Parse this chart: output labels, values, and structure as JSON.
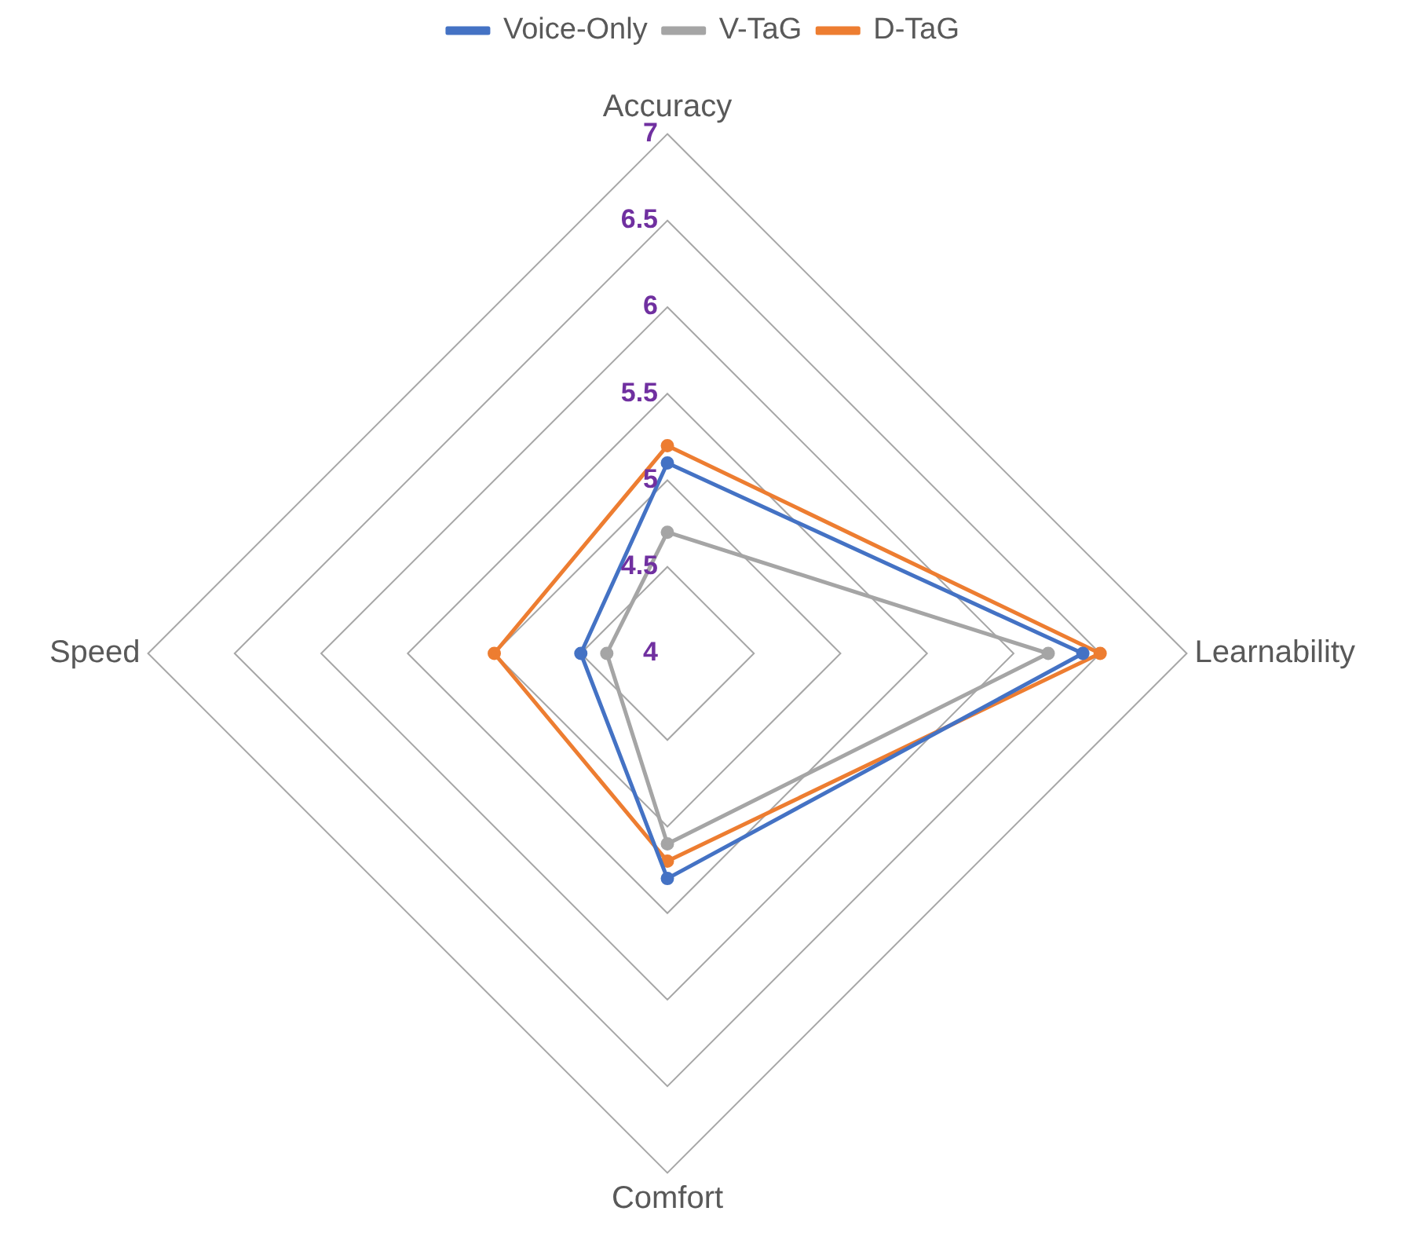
{
  "chart_data": {
    "type": "radar",
    "categories": [
      "Accuracy",
      "Learnability",
      "Comfort",
      "Speed"
    ],
    "series": [
      {
        "name": "Voice-Only",
        "color": "#4472c4",
        "values": [
          5.1,
          6.4,
          5.3,
          4.5
        ]
      },
      {
        "name": "V-TaG",
        "color": "#a5a5a5",
        "values": [
          4.7,
          6.2,
          5.1,
          4.35
        ]
      },
      {
        "name": "D-TaG",
        "color": "#ed7d31",
        "values": [
          5.2,
          6.5,
          5.2,
          5.0
        ]
      }
    ],
    "ylim": [
      4,
      7
    ],
    "yticks": [
      4,
      4.5,
      5,
      5.5,
      6,
      6.5,
      7
    ],
    "legend": "top",
    "marker": "circle",
    "grid": true
  }
}
